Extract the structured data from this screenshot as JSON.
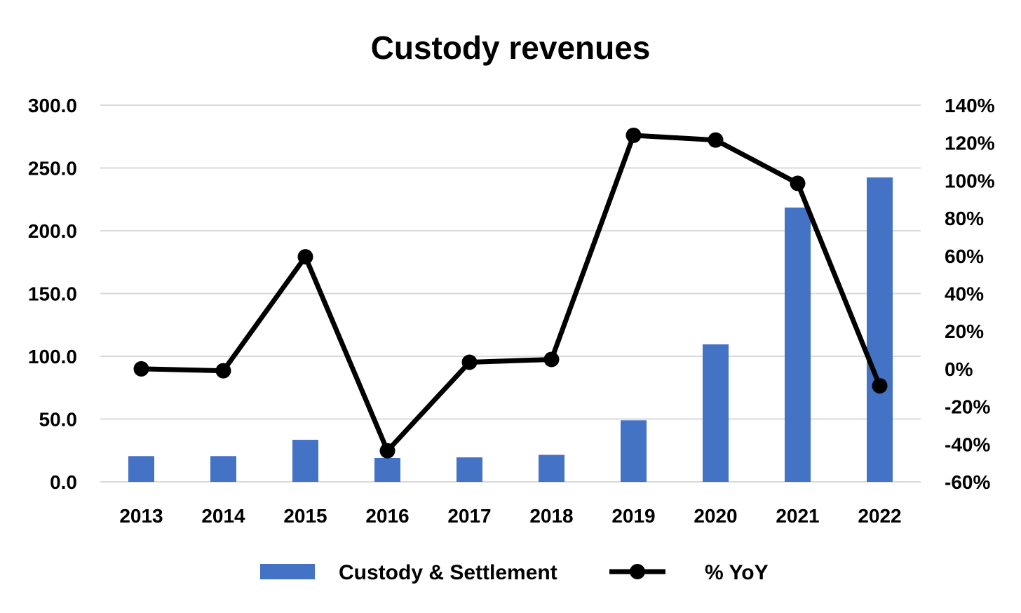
{
  "chart_data": {
    "type": "bar",
    "title": "Custody revenues",
    "categories": [
      "2013",
      "2014",
      "2015",
      "2016",
      "2017",
      "2018",
      "2019",
      "2020",
      "2021",
      "2022"
    ],
    "series": [
      {
        "name": "Custody & Settlement",
        "type": "bar",
        "axis": "left",
        "color": "#4472C4",
        "values": [
          20.5,
          20.5,
          33.5,
          19.0,
          19.5,
          21.5,
          49.0,
          109.5,
          218.5,
          242.5
        ]
      },
      {
        "name": "% YoY",
        "type": "line",
        "axis": "right",
        "color": "#000000",
        "marker": "circle",
        "values": [
          0.0,
          -1.0,
          59.5,
          -43.5,
          3.5,
          5.0,
          124.0,
          121.5,
          98.5,
          -9.0
        ]
      }
    ],
    "y_left": {
      "ylim": [
        0,
        300
      ],
      "ticks": [
        "300.0",
        "250.0",
        "200.0",
        "150.0",
        "100.0",
        "50.0",
        "0.0"
      ]
    },
    "y_right": {
      "ylim": [
        -60,
        140
      ],
      "ticks": [
        "140%",
        "120%",
        "100%",
        "80%",
        "60%",
        "40%",
        "20%",
        "0%",
        "-20%",
        "-40%",
        "-60%"
      ]
    },
    "grid": true,
    "gridline_color": "#D9D9D9",
    "legend": "bottom",
    "xlabel": "",
    "ylabel": ""
  }
}
